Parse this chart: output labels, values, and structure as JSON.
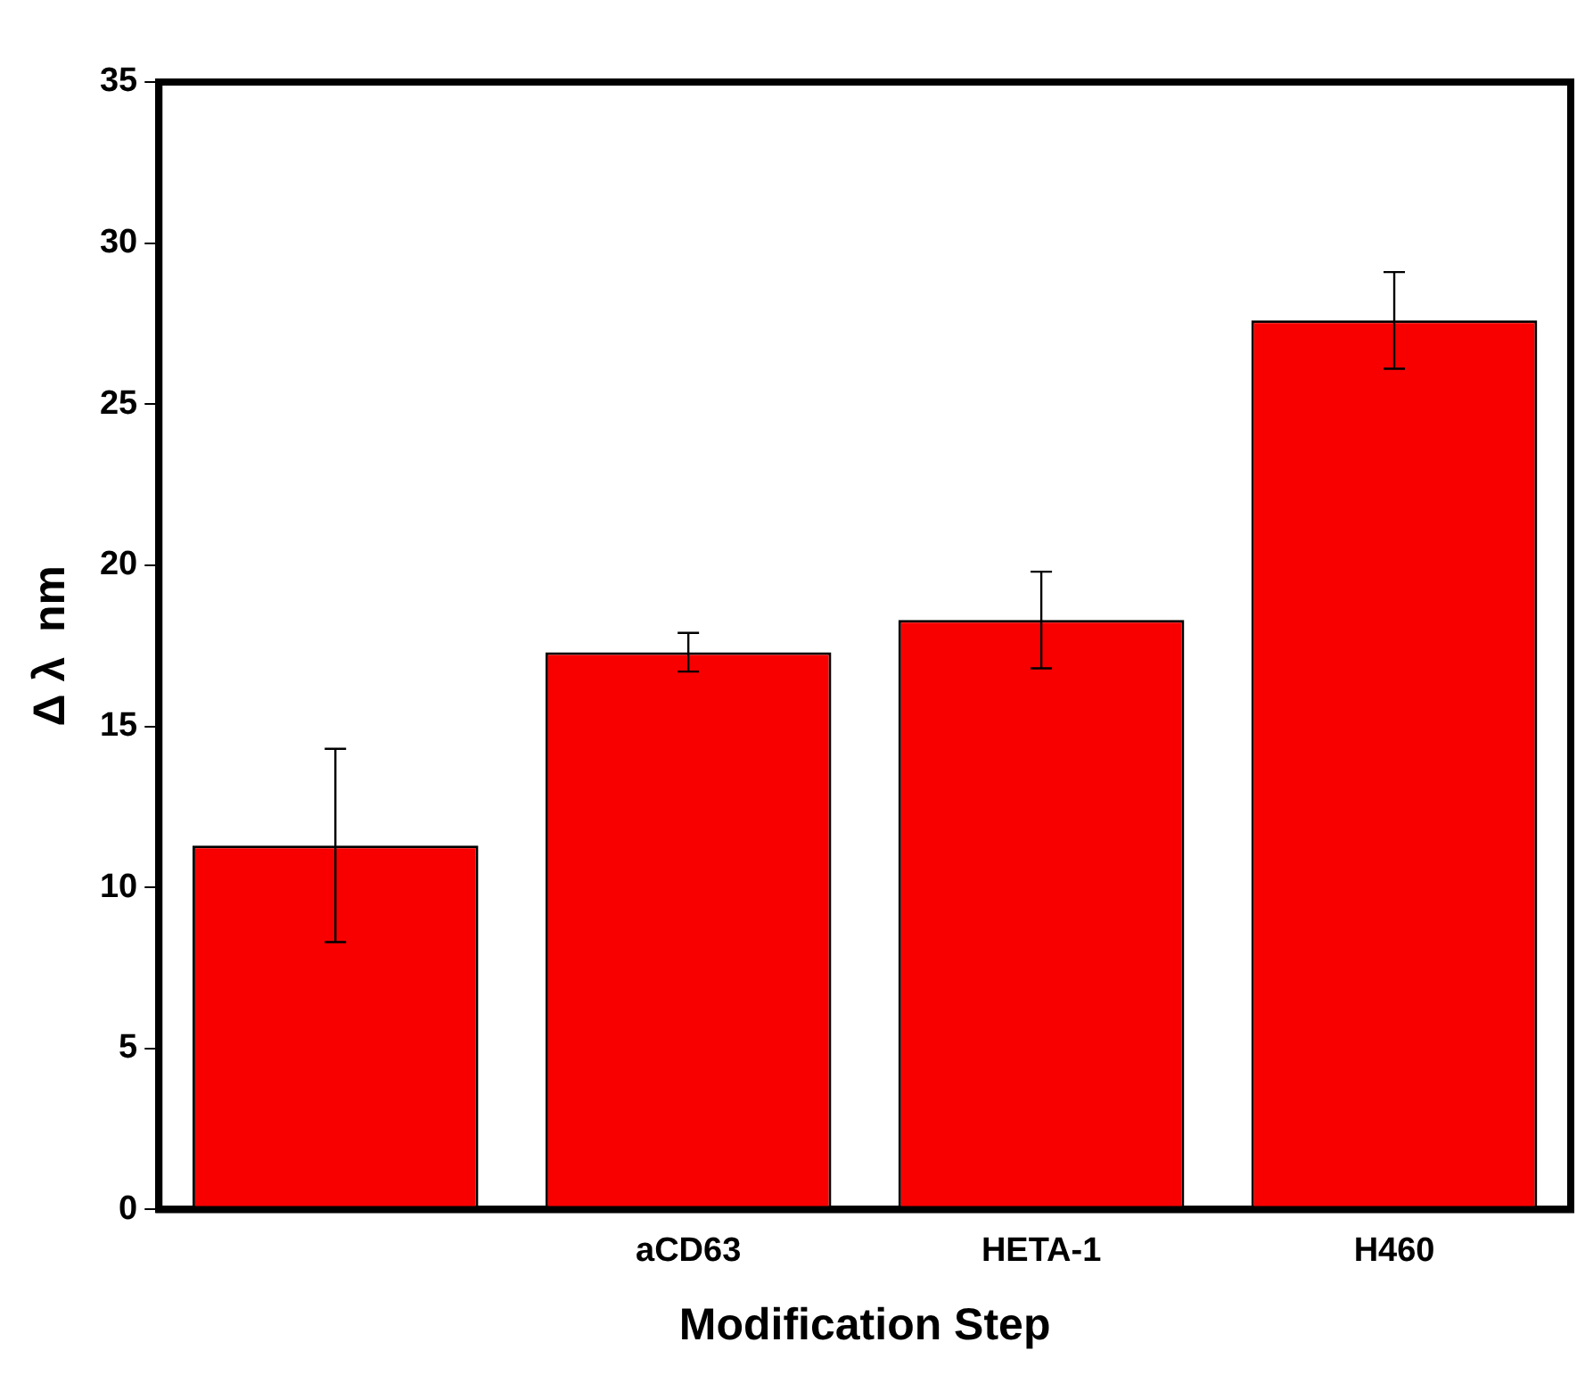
{
  "chart_data": {
    "type": "bar",
    "xlabel": "Modification Step",
    "ylabel": "Δ λ  nm",
    "categories": [
      null,
      "aCD63",
      "HETA-1",
      "H460"
    ],
    "values": [
      11.3,
      17.3,
      18.3,
      27.6
    ],
    "errors": [
      3.0,
      0.6,
      1.5,
      1.5
    ],
    "color": "#f80000",
    "ylim": [
      0,
      35
    ],
    "yticks": [
      0,
      5,
      10,
      15,
      20,
      25,
      30,
      35
    ],
    "grid": false,
    "legend": false
  }
}
